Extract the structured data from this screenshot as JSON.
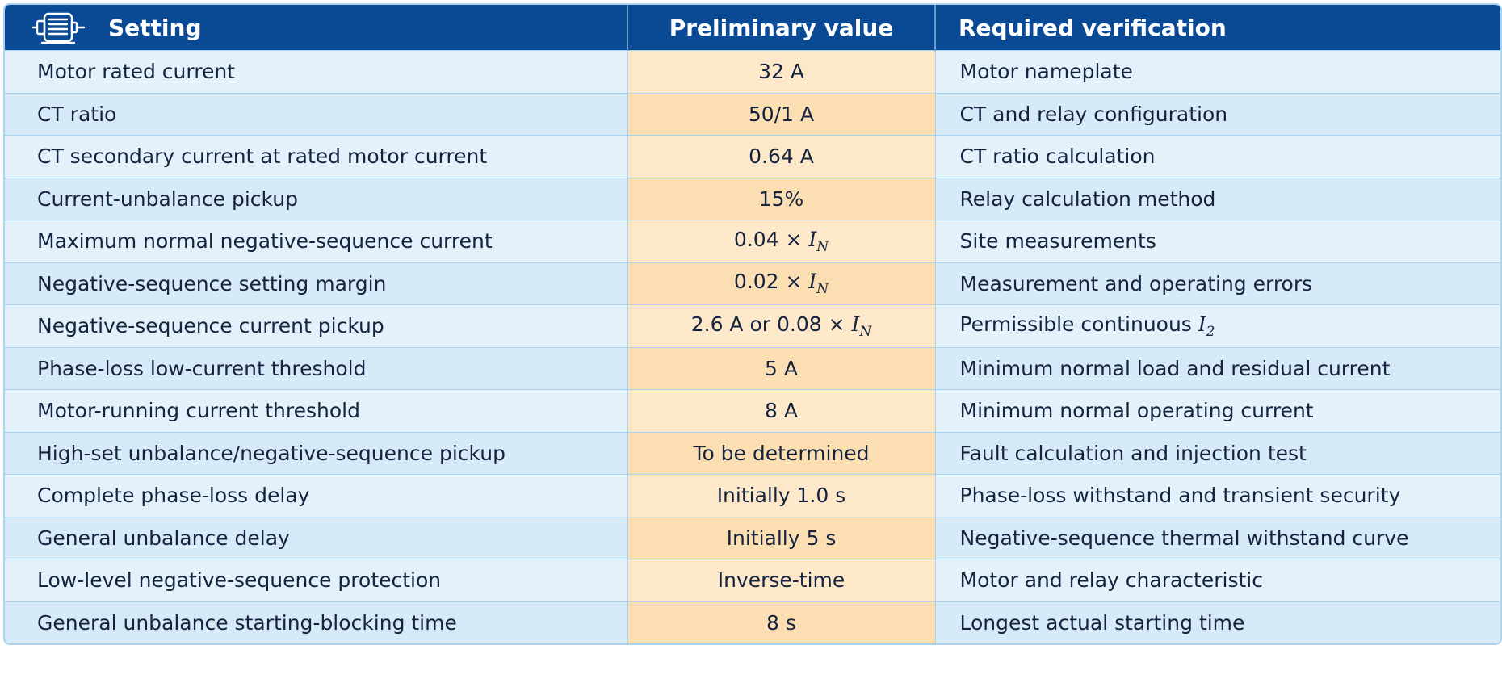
{
  "header": {
    "setting": "Setting",
    "preliminary": "Preliminary value",
    "verification": "Required verification",
    "icon": "motor-icon"
  },
  "rows": [
    {
      "setting": "Motor rated current",
      "value": "32 A",
      "verification": "Motor nameplate"
    },
    {
      "setting": "CT ratio",
      "value": "50/1 A",
      "verification": "CT and relay configuration"
    },
    {
      "setting": "CT secondary current at rated motor current",
      "value": "0.64 A",
      "verification": "CT ratio calculation"
    },
    {
      "setting": "Current-unbalance pickup",
      "value": "15%",
      "verification": "Relay calculation method"
    },
    {
      "setting": "Maximum normal negative-sequence current",
      "value": "0.04 × ",
      "value_sym": "I",
      "value_sub": "N",
      "verification": "Site measurements"
    },
    {
      "setting": "Negative-sequence setting margin",
      "value": "0.02 × ",
      "value_sym": "I",
      "value_sub": "N",
      "verification": "Measurement and operating errors"
    },
    {
      "setting": "Negative-sequence current pickup",
      "value": "2.6 A or 0.08 × ",
      "value_sym": "I",
      "value_sub": "N",
      "verification": "Permissible continuous ",
      "verification_sym": "I",
      "verification_sub": "2"
    },
    {
      "setting": "Phase-loss low-current threshold",
      "value": "5 A",
      "verification": "Minimum normal load and residual current"
    },
    {
      "setting": "Motor-running current threshold",
      "value": "8 A",
      "verification": "Minimum normal operating current"
    },
    {
      "setting": "High-set unbalance/negative-sequence pickup",
      "value": "To be determined",
      "verification": "Fault calculation and injection test"
    },
    {
      "setting": "Complete phase-loss delay",
      "value": "Initially 1.0 s",
      "verification": "Phase-loss withstand and transient security"
    },
    {
      "setting": "General unbalance delay",
      "value": "Initially 5 s",
      "verification": "Negative-sequence thermal withstand curve"
    },
    {
      "setting": "Low-level negative-sequence protection",
      "value": "Inverse-time",
      "verification": "Motor and relay characteristic"
    },
    {
      "setting": "General unbalance starting-blocking time",
      "value": "8 s",
      "verification": "Longest actual starting time"
    }
  ]
}
